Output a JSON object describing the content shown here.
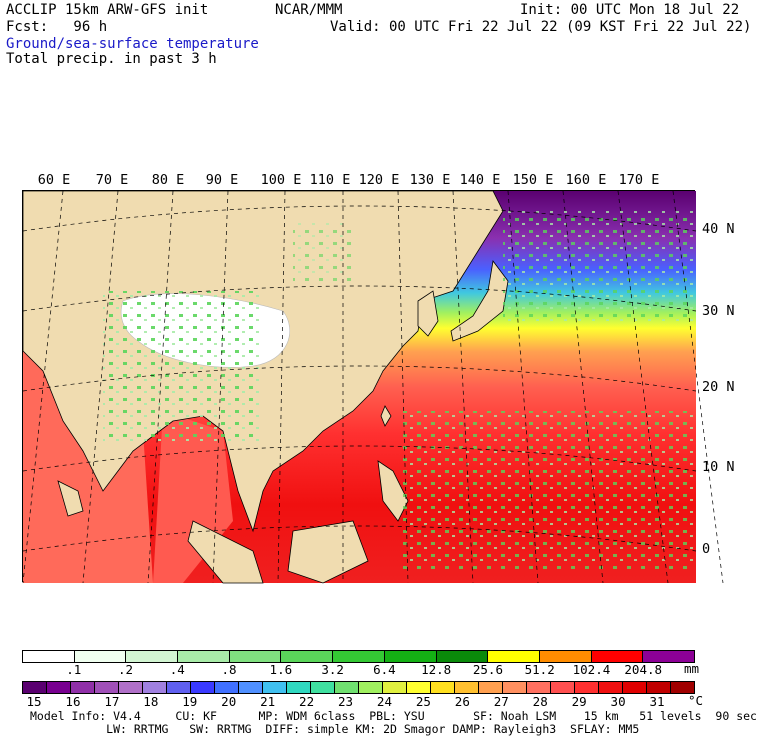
{
  "header": {
    "line1_left": "ACCLIP 15km ARW-GFS init",
    "line1_center": "NCAR/MMM",
    "line1_right": "Init: 00 UTC Mon 18 Jul 22",
    "line2_left": "Fcst:   96 h",
    "line2_right": "Valid: 00 UTC Fri 22 Jul 22 (09 KST Fri 22 Jul 22)",
    "field1": "Ground/sea-surface temperature",
    "field2": "Total precip. in past 3 h"
  },
  "map": {
    "lon_labels": [
      "60 E",
      "70 E",
      "80 E",
      "90 E",
      "100 E",
      "110 E",
      "120 E",
      "130 E",
      "140 E",
      "150 E",
      "160 E",
      "170 E"
    ],
    "lat_labels": [
      "40 N",
      "30 N",
      "20 N",
      "10 N",
      "0"
    ]
  },
  "precip_scale": {
    "labels": [
      ".1",
      ".2",
      ".4",
      ".8",
      "1.6",
      "3.2",
      "6.4",
      "12.8",
      "25.6",
      "51.2",
      "102.4",
      "204.8"
    ],
    "unit": "mm",
    "colors": [
      "#ffffff",
      "#f0fff0",
      "#d2f5d2",
      "#a8eba8",
      "#80e080",
      "#5ad55a",
      "#34c834",
      "#14b014",
      "#0a8a0a",
      "#ffff00",
      "#ff8c00",
      "#ff0000",
      "#8c0096"
    ]
  },
  "sst_scale": {
    "labels": [
      "15",
      "16",
      "17",
      "18",
      "19",
      "20",
      "21",
      "22",
      "23",
      "24",
      "25",
      "26",
      "27",
      "28",
      "29",
      "30",
      "31"
    ],
    "unit": "°C",
    "colors": [
      "#5a0070",
      "#780090",
      "#9030a8",
      "#a050b8",
      "#b070c8",
      "#a080e0",
      "#6060f0",
      "#3a3aff",
      "#4070ff",
      "#5090ff",
      "#40c0f0",
      "#30d8c0",
      "#40e0a0",
      "#70e070",
      "#a0f060",
      "#e0f040",
      "#ffff30",
      "#ffe020",
      "#ffc030",
      "#ffa050",
      "#ff9060",
      "#ff7060",
      "#ff5050",
      "#ff3030",
      "#f01010",
      "#e00000",
      "#c00000",
      "#a00000"
    ]
  },
  "footer": {
    "line1": "Model Info: V4.4     CU: KF      MP: WDM 6class  PBL: YSU       SF: Noah LSM    15 km   51 levels  90 sec",
    "line2": "           LW: RRTMG   SW: RRTMG  DIFF: simple KM: 2D Smagor DAMP: Rayleigh3  SFLAY: MM5"
  }
}
